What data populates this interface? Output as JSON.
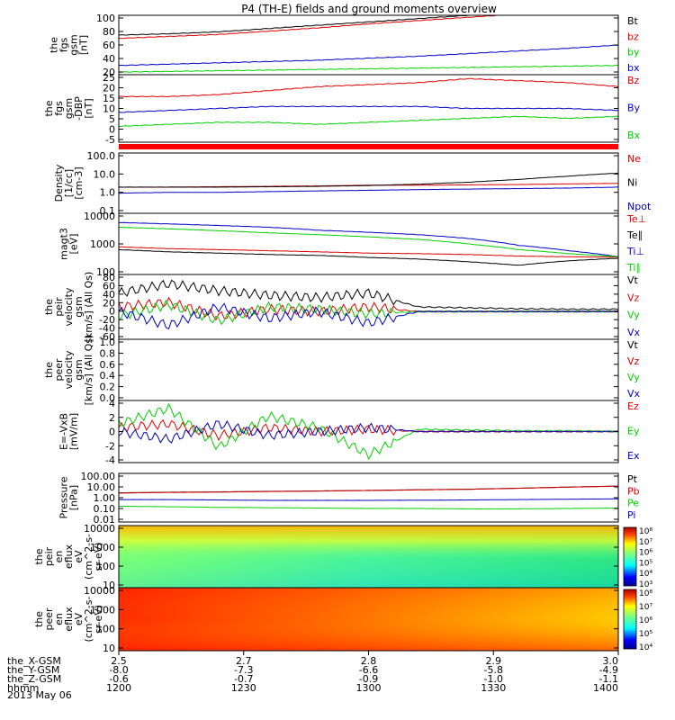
{
  "title": "P4 (TH-E) fields and ground moments overview",
  "date_label": "2013 May 06",
  "colors": {
    "black": "#000000",
    "red": "#e00000",
    "blue": "#0000c8",
    "green": "#00d000"
  },
  "chart_data": [
    {
      "type": "line",
      "name": "fgs_gsm_mag",
      "ylabel": [
        "the",
        "fgs",
        "gsm",
        "[nT]"
      ],
      "ylim": [
        10,
        100
      ],
      "yticks": [
        "100",
        "80",
        "60",
        "40",
        "20"
      ],
      "series": [
        {
          "name": "Bt",
          "color": "black",
          "values": [
            70,
            72,
            75,
            80,
            85,
            90,
            95,
            100,
            105,
            110,
            115
          ]
        },
        {
          "name": "bz",
          "color": "red",
          "values": [
            65,
            68,
            71,
            76,
            81,
            87,
            92,
            97,
            102,
            108,
            113
          ]
        },
        {
          "name": "by",
          "color": "green",
          "values": [
            14,
            15,
            16,
            17,
            18,
            19,
            20,
            21,
            22,
            23,
            24
          ]
        },
        {
          "name": "bx",
          "color": "blue",
          "values": [
            24,
            26,
            28,
            30,
            32,
            35,
            38,
            42,
            46,
            50,
            55
          ]
        }
      ]
    },
    {
      "type": "line",
      "name": "fgs_gsm_components",
      "ylabel": [
        "the",
        "fgs",
        "gsm",
        "-DBP",
        "[nT]"
      ],
      "ylim": [
        -8,
        26
      ],
      "yticks": [
        "25",
        "20",
        "15",
        "10",
        "5",
        "0",
        "-5"
      ],
      "series": [
        {
          "name": "Bz",
          "color": "red",
          "values": [
            15,
            15,
            16,
            18,
            20,
            21,
            22,
            24,
            23,
            22,
            20
          ]
        },
        {
          "name": "By",
          "color": "blue",
          "values": [
            7,
            8,
            9,
            10,
            10,
            10,
            10,
            9,
            9,
            9,
            8
          ]
        },
        {
          "name": "Bx",
          "color": "green",
          "values": [
            0,
            1,
            2,
            2,
            1,
            2,
            3,
            4,
            5,
            4,
            5
          ]
        }
      ]
    },
    {
      "type": "line",
      "name": "density",
      "ylabel": [
        "Density",
        "[1/cc]",
        "[cm-3]"
      ],
      "ylog": true,
      "ylim": [
        0.1,
        100
      ],
      "yticks": [
        "100.0",
        "10.0",
        "1.0",
        "0.1"
      ],
      "series": [
        {
          "name": "Ne",
          "color": "red",
          "values": [
            2,
            2,
            2.1,
            2.2,
            2.3,
            2.5,
            2.5,
            2.6,
            2.7,
            2.9,
            3.1
          ]
        },
        {
          "name": "Ni",
          "color": "black",
          "values": [
            2,
            2,
            2,
            2.1,
            2.2,
            2.4,
            2.8,
            3.5,
            4.8,
            7,
            10
          ]
        },
        {
          "name": "Npot",
          "color": "blue",
          "values": [
            1,
            1.1,
            1.1,
            1.2,
            1.3,
            1.4,
            1.5,
            1.6,
            1.7,
            1.8,
            2
          ]
        }
      ]
    },
    {
      "type": "line",
      "name": "temperature",
      "ylabel": [
        "magt3",
        "[eV]"
      ],
      "ylog": true,
      "ylim": [
        100,
        10000
      ],
      "yticks": [
        "10000",
        "1000",
        "100"
      ],
      "series": [
        {
          "name": "Te⊥",
          "color": "red",
          "values": [
            800,
            700,
            650,
            600,
            550,
            500,
            480,
            450,
            400,
            380,
            370
          ]
        },
        {
          "name": "Te∥",
          "color": "black",
          "values": [
            650,
            550,
            500,
            450,
            420,
            360,
            320,
            260,
            200,
            280,
            340
          ]
        },
        {
          "name": "Ti⊥",
          "color": "blue",
          "values": [
            5000,
            4500,
            4000,
            3500,
            2800,
            2400,
            2000,
            1500,
            900,
            600,
            380
          ]
        },
        {
          "name": "Ti∥",
          "color": "green",
          "values": [
            3500,
            3100,
            2700,
            2300,
            2000,
            1700,
            1400,
            1000,
            650,
            480,
            380
          ]
        }
      ]
    },
    {
      "type": "line",
      "name": "peir_velocity",
      "ylabel": [
        "the",
        "peir",
        "velocity",
        "gsm",
        "[km/s] (All Qs)"
      ],
      "ylim": [
        -60,
        80
      ],
      "yticks": [
        "80",
        "60",
        "40",
        "20",
        "0",
        "-20",
        "-40",
        "-60"
      ],
      "series": [
        {
          "name": "Vt",
          "color": "black",
          "values": [
            40,
            60,
            45,
            35,
            30,
            40,
            10,
            8,
            6,
            5,
            5
          ]
        },
        {
          "name": "Vz",
          "color": "red",
          "values": [
            10,
            20,
            -10,
            5,
            0,
            10,
            0,
            0,
            0,
            0,
            0
          ]
        },
        {
          "name": "Vy",
          "color": "green",
          "values": [
            -10,
            15,
            -20,
            10,
            5,
            -5,
            0,
            0,
            0,
            0,
            0
          ]
        },
        {
          "name": "Vx",
          "color": "blue",
          "values": [
            0,
            -30,
            10,
            -15,
            0,
            -25,
            0,
            0,
            0,
            0,
            0
          ]
        }
      ]
    },
    {
      "type": "line",
      "name": "peer_velocity",
      "ylabel": [
        "the",
        "peer",
        "velocity",
        "gsm",
        "[km/s] (All Qs)"
      ],
      "ylim": [
        0,
        1
      ],
      "yticks": [
        "1.0",
        "0.8",
        "0.6",
        "0.4",
        "0.2",
        "0.0"
      ],
      "series": [
        {
          "name": "Vt",
          "color": "black",
          "values": []
        },
        {
          "name": "Vz",
          "color": "red",
          "values": []
        },
        {
          "name": "Vy",
          "color": "green",
          "values": []
        },
        {
          "name": "Vx",
          "color": "blue",
          "values": []
        }
      ]
    },
    {
      "type": "line",
      "name": "efield",
      "ylabel": [
        "E=-VxB",
        "[mV/m]"
      ],
      "ylim": [
        -4,
        4
      ],
      "yticks": [
        "4",
        "2",
        "0",
        "-2",
        "-4"
      ],
      "series": [
        {
          "name": "Ez",
          "color": "red",
          "values": [
            0.5,
            1,
            -0.5,
            0.5,
            0,
            0.3,
            0,
            0,
            0,
            0,
            0
          ]
        },
        {
          "name": "Ey",
          "color": "green",
          "values": [
            1,
            3,
            -2,
            2,
            0.5,
            -3,
            0.3,
            0.2,
            0.1,
            0.1,
            0
          ]
        },
        {
          "name": "Ex",
          "color": "blue",
          "values": [
            0,
            -1,
            1,
            -0.5,
            0,
            0.5,
            0,
            0,
            0,
            0,
            0
          ]
        }
      ]
    },
    {
      "type": "line",
      "name": "pressure",
      "ylabel": [
        "Pressure",
        "[nPa]"
      ],
      "ylog": true,
      "ylim": [
        0.01,
        100
      ],
      "yticks": [
        "100.00",
        "10.00",
        "1.00",
        "0.10",
        "0.01"
      ],
      "series": [
        {
          "name": "Pt",
          "color": "black",
          "values": [
            2.5,
            2.8,
            3,
            3.3,
            3.6,
            4,
            4.5,
            5,
            6,
            7.5,
            9
          ]
        },
        {
          "name": "Pb",
          "color": "red",
          "values": [
            2.4,
            2.7,
            2.9,
            3.2,
            3.5,
            3.9,
            4.4,
            4.9,
            5.9,
            7.4,
            8.9
          ]
        },
        {
          "name": "Pe",
          "color": "green",
          "values": [
            0.2,
            0.18,
            0.16,
            0.15,
            0.14,
            0.13,
            0.13,
            0.12,
            0.12,
            0.13,
            0.14
          ]
        },
        {
          "name": "Pi",
          "color": "blue",
          "values": [
            0.7,
            0.7,
            0.65,
            0.6,
            0.6,
            0.6,
            0.62,
            0.65,
            0.7,
            0.75,
            0.8
          ]
        }
      ]
    },
    {
      "type": "heatmap",
      "name": "peir_spectrogram",
      "ylabel": [
        "the",
        "peir",
        "en",
        "eflux",
        "eV",
        "(cm^2-s-",
        "sr-eV)"
      ],
      "ylog": true,
      "ylim": [
        10,
        20000
      ],
      "yticks": [
        "10000",
        "1000",
        "100",
        "10"
      ],
      "colorbar": {
        "min_exp": 3,
        "max_exp": 8,
        "labels": [
          "10⁸",
          "10⁷",
          "10⁶",
          "10⁵",
          "10⁴",
          "10³"
        ]
      }
    },
    {
      "type": "heatmap",
      "name": "peer_spectrogram",
      "ylabel": [
        "the",
        "peer",
        "en",
        "eflux",
        "eV",
        "(cm^2-s-",
        "sr-eV)"
      ],
      "ylog": true,
      "ylim": [
        10,
        20000
      ],
      "yticks": [
        "10000",
        "1000",
        "100",
        "10"
      ],
      "colorbar": {
        "min_exp": 3.5,
        "max_exp": 8,
        "labels": [
          "10⁸",
          "10⁷",
          "10⁶",
          "10⁵",
          "10⁴"
        ]
      }
    }
  ],
  "x_axis": {
    "row_labels": [
      "the_X-GSM",
      "the_Y-GSM",
      "the_Z-GSM",
      "hhmm"
    ],
    "columns": [
      [
        "2.5",
        "-8.0",
        "-0.6",
        "1200"
      ],
      [
        "2.7",
        "-7.3",
        "-0.7",
        "1230"
      ],
      [
        "2.8",
        "-6.6",
        "-0.9",
        "1300"
      ],
      [
        "2.9",
        "-5.8",
        "-1.0",
        "1330"
      ],
      [
        "3.0",
        "-4.9",
        "-1.1",
        "1400"
      ]
    ]
  }
}
